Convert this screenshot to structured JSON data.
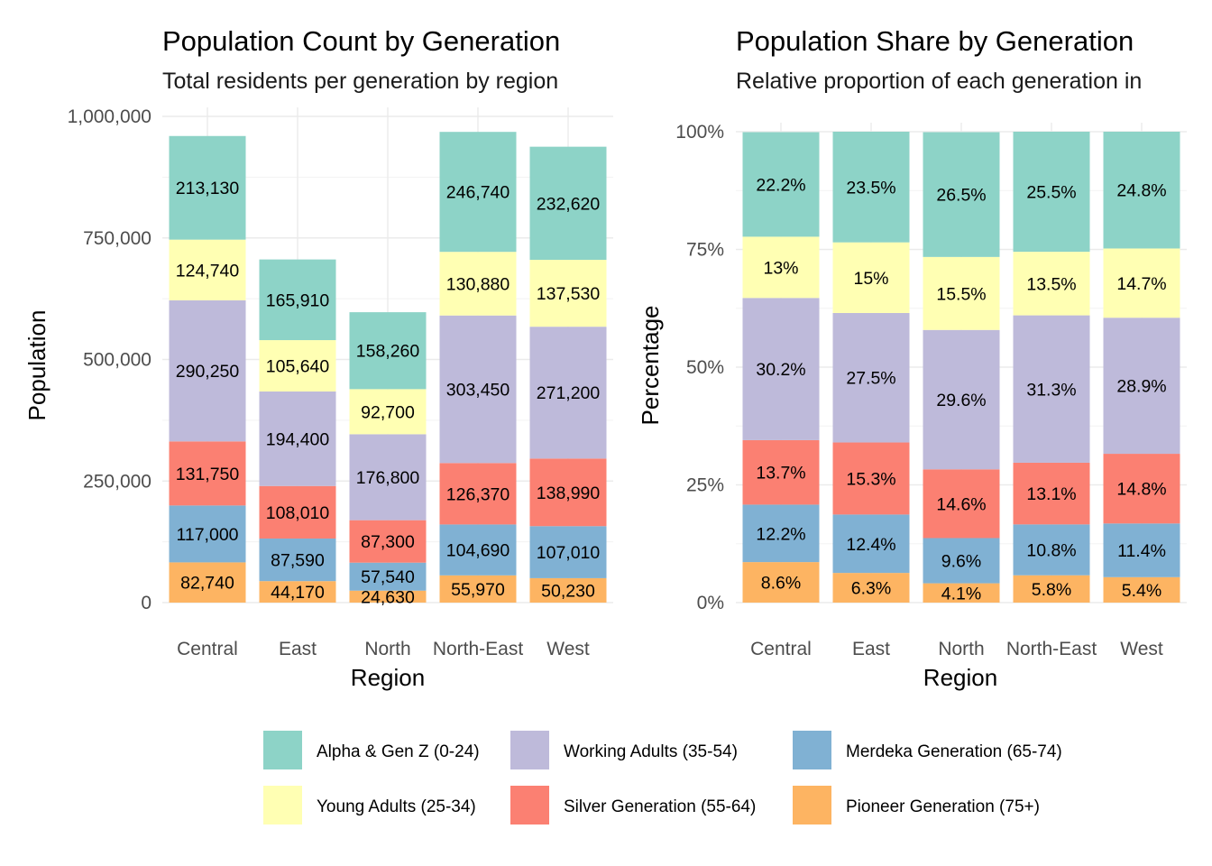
{
  "chart_data": [
    {
      "type": "bar",
      "stacked": true,
      "title": "Population Count by Generation",
      "subtitle": "Total residents per generation by region",
      "xlabel": "Region",
      "ylabel": "Population",
      "categories": [
        "Central",
        "East",
        "North",
        "North-East",
        "West"
      ],
      "ylim": [
        0,
        1000000
      ],
      "yticks": [
        0,
        250000,
        500000,
        750000,
        1000000
      ],
      "ytick_labels": [
        "0",
        "250,000",
        "500,000",
        "750,000",
        "1,000,000"
      ],
      "grid": true,
      "series": [
        {
          "name": "Pioneer Generation (75+)",
          "values": [
            82740,
            44170,
            24630,
            55970,
            50230
          ],
          "labels": [
            "82,740",
            "44,170",
            "24,630",
            "55,970",
            "50,230"
          ]
        },
        {
          "name": "Merdeka Generation (65-74)",
          "values": [
            117000,
            87590,
            57540,
            104690,
            107010
          ],
          "labels": [
            "117,000",
            "87,590",
            "57,540",
            "104,690",
            "107,010"
          ]
        },
        {
          "name": "Silver Generation (55-64)",
          "values": [
            131750,
            108010,
            87300,
            126370,
            138990
          ],
          "labels": [
            "131,750",
            "108,010",
            "87,300",
            "126,370",
            "138,990"
          ]
        },
        {
          "name": "Working Adults (35-54)",
          "values": [
            290250,
            194400,
            176800,
            303450,
            271200
          ],
          "labels": [
            "290,250",
            "194,400",
            "176,800",
            "303,450",
            "271,200"
          ]
        },
        {
          "name": "Young Adults (25-34)",
          "values": [
            124740,
            105640,
            92700,
            130880,
            137530
          ],
          "labels": [
            "124,740",
            "105,640",
            "92,700",
            "130,880",
            "137,530"
          ]
        },
        {
          "name": "Alpha & Gen Z (0-24)",
          "values": [
            213130,
            165910,
            158260,
            246740,
            232620
          ],
          "labels": [
            "213,130",
            "165,910",
            "158,260",
            "246,740",
            "232,620"
          ]
        }
      ]
    },
    {
      "type": "bar",
      "stacked": true,
      "title": "Population Share by Generation",
      "subtitle": "Relative proportion of each generation in",
      "xlabel": "Region",
      "ylabel": "Percentage",
      "categories": [
        "Central",
        "East",
        "North",
        "North-East",
        "West"
      ],
      "ylim": [
        0,
        100
      ],
      "yticks": [
        0,
        25,
        50,
        75,
        100
      ],
      "ytick_labels": [
        "0%",
        "25%",
        "50%",
        "75%",
        "100%"
      ],
      "grid": true,
      "series": [
        {
          "name": "Pioneer Generation (75+)",
          "values": [
            8.6,
            6.3,
            4.1,
            5.8,
            5.4
          ],
          "labels": [
            "8.6%",
            "6.3%",
            "4.1%",
            "5.8%",
            "5.4%"
          ]
        },
        {
          "name": "Merdeka Generation (65-74)",
          "values": [
            12.2,
            12.4,
            9.6,
            10.8,
            11.4
          ],
          "labels": [
            "12.2%",
            "12.4%",
            "9.6%",
            "10.8%",
            "11.4%"
          ]
        },
        {
          "name": "Silver Generation (55-64)",
          "values": [
            13.7,
            15.3,
            14.6,
            13.1,
            14.8
          ],
          "labels": [
            "13.7%",
            "15.3%",
            "14.6%",
            "13.1%",
            "14.8%"
          ]
        },
        {
          "name": "Working Adults (35-54)",
          "values": [
            30.2,
            27.5,
            29.6,
            31.3,
            28.9
          ],
          "labels": [
            "30.2%",
            "27.5%",
            "29.6%",
            "31.3%",
            "28.9%"
          ]
        },
        {
          "name": "Young Adults (25-34)",
          "values": [
            13.0,
            15.0,
            15.5,
            13.5,
            14.7
          ],
          "labels": [
            "13%",
            "15%",
            "15.5%",
            "13.5%",
            "14.7%"
          ]
        },
        {
          "name": "Alpha & Gen Z (0-24)",
          "values": [
            22.2,
            23.5,
            26.5,
            25.5,
            24.8
          ],
          "labels": [
            "22.2%",
            "23.5%",
            "26.5%",
            "25.5%",
            "24.8%"
          ]
        }
      ]
    }
  ],
  "legend": {
    "position": "bottom",
    "items": [
      {
        "label": "Alpha & Gen Z (0-24)",
        "color": "#8DD3C7"
      },
      {
        "label": "Young Adults (25-34)",
        "color": "#FFFFB3"
      },
      {
        "label": "Working Adults (35-54)",
        "color": "#BEBADA"
      },
      {
        "label": "Silver Generation (55-64)",
        "color": "#FB8072"
      },
      {
        "label": "Merdeka Generation (65-74)",
        "color": "#80B1D3"
      },
      {
        "label": "Pioneer Generation (75+)",
        "color": "#FDB462"
      }
    ]
  },
  "colors": {
    "Alpha & Gen Z (0-24)": "#8DD3C7",
    "Young Adults (25-34)": "#FFFFB3",
    "Working Adults (35-54)": "#BEBADA",
    "Silver Generation (55-64)": "#FB8072",
    "Merdeka Generation (65-74)": "#80B1D3",
    "Pioneer Generation (75+)": "#FDB462"
  }
}
